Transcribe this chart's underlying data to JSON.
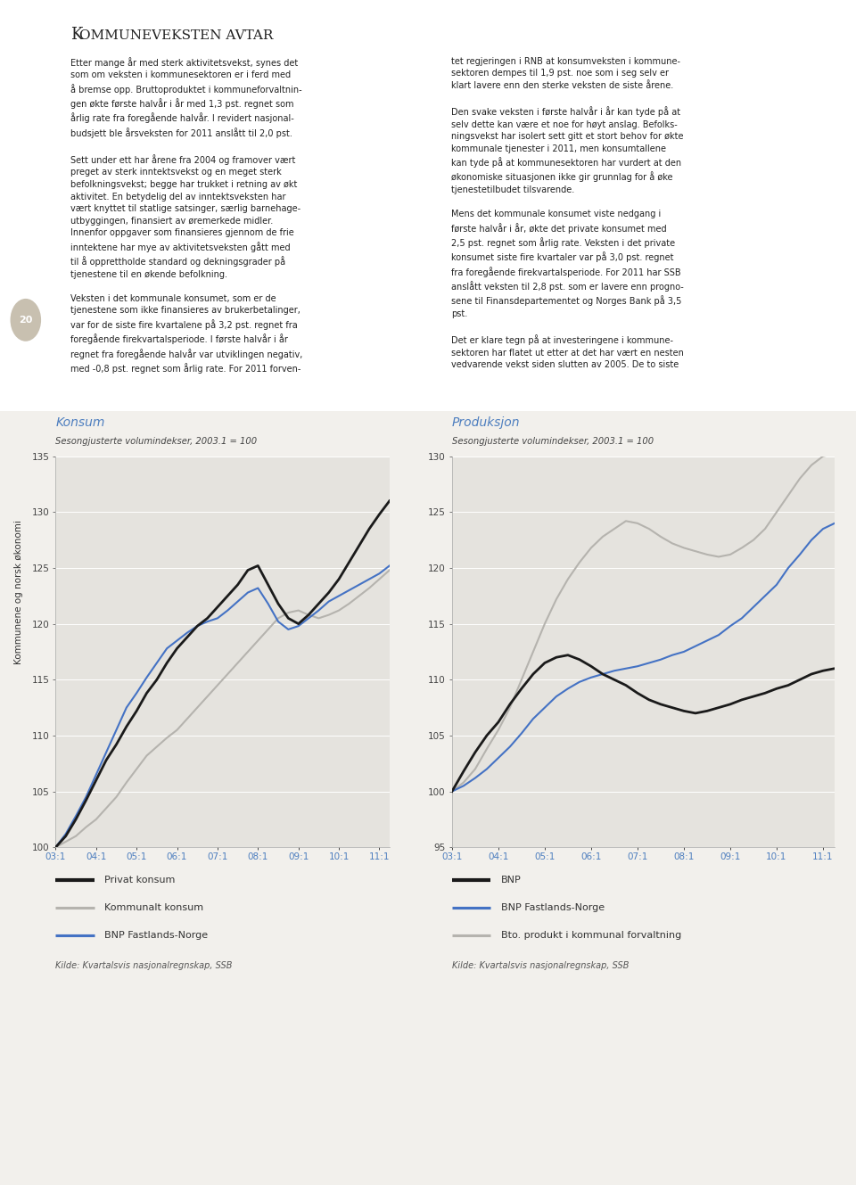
{
  "page_background": "#f2f0ec",
  "chart_background": "#e5e3de",
  "left_title": "Konsum",
  "left_subtitle": "Sesongjusterte volumindekser, 2003.1 = 100",
  "right_title": "Produksjon",
  "right_subtitle": "Sesongjusterte volumindekser, 2003.1 = 100",
  "left_source": "Kilde: Kvartalsvis nasjonalregnskap, SSB",
  "right_source": "Kilde: Kvartalsvis nasjonalregnskap, SSB",
  "left_ylim": [
    100,
    135
  ],
  "right_ylim": [
    95,
    130
  ],
  "left_yticks": [
    100,
    105,
    110,
    115,
    120,
    125,
    130,
    135
  ],
  "right_yticks": [
    95,
    100,
    105,
    110,
    115,
    120,
    125,
    130
  ],
  "xtick_labels": [
    "03:1",
    "04:1",
    "05:1",
    "06:1",
    "07:1",
    "08:1",
    "09:1",
    "10:1",
    "11:1"
  ],
  "left_legend": [
    "Privat konsum",
    "Kommunalt konsum",
    "BNP Fastlands-Norge"
  ],
  "right_legend": [
    "BNP",
    "BNP Fastlands-Norge",
    "Bto. produkt i kommunal forvaltning"
  ],
  "left_colors": [
    "#1a1a1a",
    "#b5b3ae",
    "#4472c4"
  ],
  "right_colors": [
    "#1a1a1a",
    "#4472c4",
    "#b5b3ae"
  ],
  "title_color": "#4d7ebf",
  "subtitle_color": "#444444",
  "tick_label_color": "#4d7ebf",
  "n_quarters": 34,
  "left_privat": [
    100.0,
    101.0,
    102.5,
    104.2,
    106.0,
    107.8,
    109.2,
    110.8,
    112.2,
    113.8,
    115.0,
    116.5,
    117.8,
    118.8,
    119.8,
    120.5,
    121.5,
    122.5,
    123.5,
    124.8,
    125.2,
    123.5,
    121.8,
    120.5,
    120.0,
    120.8,
    121.8,
    122.8,
    124.0,
    125.5,
    127.0,
    128.5,
    129.8,
    131.0
  ],
  "left_kommunalt": [
    100.0,
    100.5,
    101.0,
    101.8,
    102.5,
    103.5,
    104.5,
    105.8,
    107.0,
    108.2,
    109.0,
    109.8,
    110.5,
    111.5,
    112.5,
    113.5,
    114.5,
    115.5,
    116.5,
    117.5,
    118.5,
    119.5,
    120.5,
    121.0,
    121.2,
    120.8,
    120.5,
    120.8,
    121.2,
    121.8,
    122.5,
    123.2,
    124.0,
    124.8
  ],
  "left_bnp": [
    100.0,
    101.2,
    102.8,
    104.5,
    106.5,
    108.5,
    110.5,
    112.5,
    113.8,
    115.2,
    116.5,
    117.8,
    118.5,
    119.2,
    119.8,
    120.2,
    120.5,
    121.2,
    122.0,
    122.8,
    123.2,
    121.8,
    120.2,
    119.5,
    119.8,
    120.5,
    121.2,
    122.0,
    122.5,
    123.0,
    123.5,
    124.0,
    124.5,
    125.2
  ],
  "right_bnp": [
    100.0,
    101.8,
    103.5,
    105.0,
    106.2,
    107.8,
    109.2,
    110.5,
    111.5,
    112.0,
    112.2,
    111.8,
    111.2,
    110.5,
    110.0,
    109.5,
    108.8,
    108.2,
    107.8,
    107.5,
    107.2,
    107.0,
    107.2,
    107.5,
    107.8,
    108.2,
    108.5,
    108.8,
    109.2,
    109.5,
    110.0,
    110.5,
    110.8,
    111.0
  ],
  "right_bnp_fastlands": [
    100.0,
    100.5,
    101.2,
    102.0,
    103.0,
    104.0,
    105.2,
    106.5,
    107.5,
    108.5,
    109.2,
    109.8,
    110.2,
    110.5,
    110.8,
    111.0,
    111.2,
    111.5,
    111.8,
    112.2,
    112.5,
    113.0,
    113.5,
    114.0,
    114.8,
    115.5,
    116.5,
    117.5,
    118.5,
    120.0,
    121.2,
    122.5,
    123.5,
    124.0
  ],
  "right_kommunal": [
    100.0,
    100.8,
    102.0,
    103.8,
    105.5,
    107.5,
    110.0,
    112.5,
    115.0,
    117.2,
    119.0,
    120.5,
    121.8,
    122.8,
    123.5,
    124.2,
    124.0,
    123.5,
    122.8,
    122.2,
    121.8,
    121.5,
    121.2,
    121.0,
    121.2,
    121.8,
    122.5,
    123.5,
    125.0,
    126.5,
    128.0,
    129.2,
    130.0,
    130.2
  ],
  "header": "KOMMUNEVEKSTEN AVTAR",
  "header_first": "K",
  "header_rest": "OMMUNEVEKSTEN AVTAR",
  "body_left": "Etter mange år med sterk aktivitetsvekst, synes det\nsom om veksten i kommunesektoren er i ferd med\nå bremse opp. Bruttoproduktet i kommuneforvaltnin-\ngen økte første halvår i år med 1,3 pst. regnet som\nårlig rate fra foregående halvår. I revidert nasjonal-\nbudsjett ble årsveksten for 2011 anslått til 2,0 pst.\n\nSett under ett har årene fra 2004 og framover vært\npreget av sterk inntektsvekst og en meget sterk\nbefolkningsvekst; begge har trukket i retning av økt\naktivitet. En betydelig del av inntektsveksten har\nvært knyttet til statlige satsinger, særlig barnehage-\nutbyggingen, finansiert av øremerkede midler.\nInnenfor oppgaver som finansieres gjennom de frie\ninntektene har mye av aktivitetsveksten gått med\ntil å opprettholde standard og dekningsgrader på\ntjenestene til en økende befolkning.\n\nVeksten i det kommunale konsumet, som er de\ntjenestene som ikke finansieres av brukerbetalinger,\nvar for de siste fire kvartalene på 3,2 pst. regnet fra\nforegående firekvartalsperiode. I første halvår i år\nregnet fra foregående halvår var utviklingen negativ,\nmed -0,8 pst. regnet som årlig rate. For 2011 forven-",
  "body_right": "tet regjeringen i RNB at konsumveksten i kommune-\nsektoren dempes til 1,9 pst. noe som i seg selv er\nklart lavere enn den sterke veksten de siste årene.\n\nDen svake veksten i første halvår i år kan tyde på at\nselv dette kan være et noe for høyt anslag. Befolks-\nningsvekst har isolert sett gitt et stort behov for økte\nkommunale tjenester i 2011, men konsumtallene\nkan tyde på at kommunesektoren har vurdert at den\nøkonomiske situasjonen ikke gir grunnlag for å øke\ntjenestetilbudet tilsvarende.\n\nMens det kommunale konsumet viste nedgang i\nførste halvår i år, økte det private konsumet med\n2,5 pst. regnet som årlig rate. Veksten i det private\nkonsumet siste fire kvartaler var på 3,0 pst. regnet\nfra foregående firekvartalsperiode. For 2011 har SSB\nanslått veksten til 2,8 pst. som er lavere enn progno-\nsene til Finansdepartementet og Norges Bank på 3,5\npst.\n\nDet er klare tegn på at investeringene i kommune-\nsektoren har flatet ut etter at det har vært en nesten\nvedvarende vekst siden slutten av 2005. De to siste",
  "sidebar_text": "Kommunene og norsk økonomi",
  "page_num": "20"
}
